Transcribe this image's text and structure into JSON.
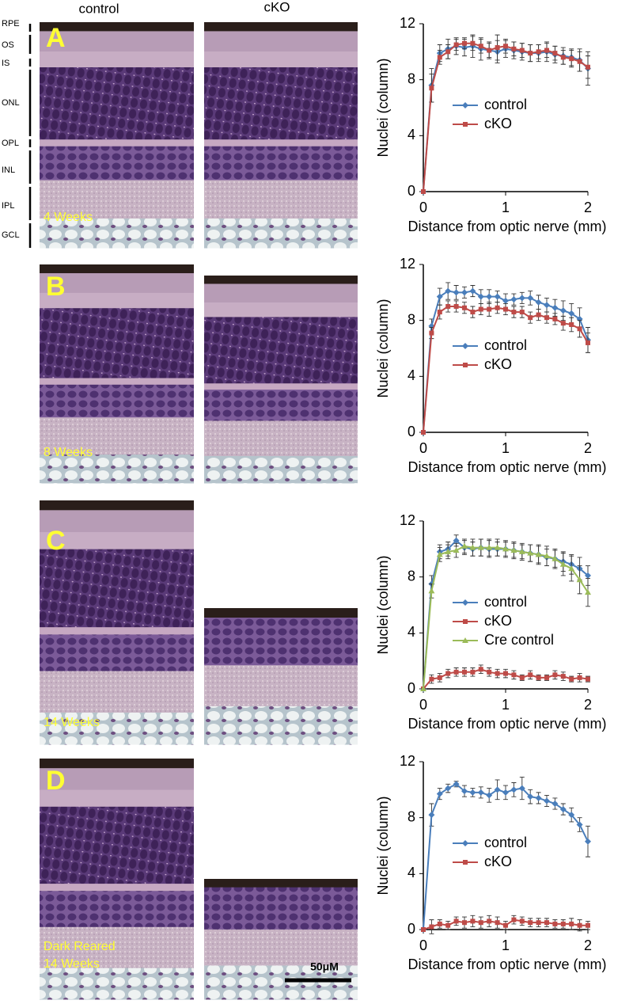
{
  "figure": {
    "column_labels": [
      "control",
      "cKO"
    ],
    "layer_labels": [
      "RPE",
      "OS",
      "IS",
      "ONL",
      "OPL",
      "INL",
      "IPL",
      "GCL"
    ],
    "panel_letters": [
      "A",
      "B",
      "C",
      "D"
    ],
    "ages": [
      "4 Weeks",
      "8 Weeks",
      "14 Weeks",
      "Dark Reared",
      "14 Weeks"
    ],
    "scale_bar": "50μM"
  },
  "chart_data": [
    {
      "type": "line",
      "xlabel": "Distance from optic nerve (mm)",
      "ylabel": "Nuclei (column)",
      "x": [
        0,
        0.1,
        0.2,
        0.3,
        0.4,
        0.5,
        0.6,
        0.7,
        0.8,
        0.9,
        1.0,
        1.1,
        1.2,
        1.3,
        1.4,
        1.5,
        1.6,
        1.7,
        1.8,
        1.9,
        2.0
      ],
      "xlim": [
        0,
        2
      ],
      "xticks": [
        0,
        1,
        2
      ],
      "ylim": [
        0,
        12
      ],
      "yticks": [
        0,
        4,
        8,
        12
      ],
      "series": [
        {
          "name": "control",
          "color": "#4a7ebb",
          "marker": "diamond",
          "values": [
            0,
            7.6,
            9.9,
            10.2,
            10.4,
            10.3,
            10.4,
            10.2,
            10.1,
            10.0,
            10.2,
            10.1,
            10.0,
            9.9,
            9.9,
            10.0,
            9.8,
            9.7,
            9.6,
            9.4,
            8.8
          ],
          "errors": [
            0,
            1.2,
            0.6,
            0.7,
            0.6,
            0.6,
            0.8,
            0.8,
            0.6,
            0.8,
            0.6,
            0.6,
            0.6,
            0.6,
            0.6,
            0.7,
            0.6,
            0.6,
            0.6,
            0.8,
            1.2
          ]
        },
        {
          "name": "cKO",
          "color": "#be4b48",
          "marker": "square",
          "values": [
            0,
            7.4,
            9.6,
            10.0,
            10.5,
            10.6,
            10.6,
            10.4,
            10.1,
            10.3,
            10.4,
            10.2,
            10.1,
            9.9,
            10.0,
            10.1,
            9.9,
            9.6,
            9.5,
            9.3,
            8.9
          ],
          "errors": [
            0,
            1.0,
            0.5,
            0.5,
            0.4,
            0.4,
            0.5,
            0.5,
            0.5,
            0.9,
            0.5,
            0.5,
            0.5,
            0.6,
            0.5,
            0.5,
            0.5,
            0.5,
            0.6,
            0.7,
            0.8
          ]
        }
      ]
    },
    {
      "type": "line",
      "xlabel": "Distance from optic nerve (mm)",
      "ylabel": "Nuclei (column)",
      "x": [
        0,
        0.1,
        0.2,
        0.3,
        0.4,
        0.5,
        0.6,
        0.7,
        0.8,
        0.9,
        1.0,
        1.1,
        1.2,
        1.3,
        1.4,
        1.5,
        1.6,
        1.7,
        1.8,
        1.9,
        2.0
      ],
      "xlim": [
        0,
        2
      ],
      "xticks": [
        0,
        1,
        2
      ],
      "ylim": [
        0,
        12
      ],
      "yticks": [
        0,
        4,
        8,
        12
      ],
      "series": [
        {
          "name": "control",
          "color": "#4a7ebb",
          "marker": "diamond",
          "values": [
            0,
            7.6,
            9.7,
            10.1,
            10.0,
            10.0,
            10.1,
            9.7,
            9.7,
            9.7,
            9.4,
            9.5,
            9.6,
            9.6,
            9.3,
            9.1,
            8.9,
            8.7,
            8.5,
            8.1,
            6.6
          ],
          "errors": [
            0,
            0.5,
            0.6,
            0.6,
            0.5,
            0.4,
            0.4,
            0.5,
            0.5,
            0.4,
            0.5,
            0.4,
            0.4,
            0.5,
            0.5,
            0.5,
            0.6,
            0.7,
            0.7,
            0.8,
            0.9
          ]
        },
        {
          "name": "cKO",
          "color": "#be4b48",
          "marker": "square",
          "values": [
            0,
            7.1,
            8.6,
            9.0,
            9.0,
            8.9,
            8.6,
            8.8,
            8.8,
            8.9,
            8.8,
            8.6,
            8.6,
            8.2,
            8.4,
            8.2,
            8.1,
            7.8,
            7.7,
            7.4,
            6.4
          ],
          "errors": [
            0,
            0.4,
            0.5,
            0.4,
            0.4,
            0.4,
            0.4,
            0.4,
            0.5,
            0.4,
            0.4,
            0.4,
            0.4,
            0.4,
            0.4,
            0.4,
            0.4,
            0.5,
            0.5,
            0.6,
            0.7
          ]
        }
      ]
    },
    {
      "type": "line",
      "xlabel": "Distance from optic nerve (mm)",
      "ylabel": "Nuclei (column)",
      "x": [
        0,
        0.1,
        0.2,
        0.3,
        0.4,
        0.5,
        0.6,
        0.7,
        0.8,
        0.9,
        1.0,
        1.1,
        1.2,
        1.3,
        1.4,
        1.5,
        1.6,
        1.7,
        1.8,
        1.9,
        2.0
      ],
      "xlim": [
        0,
        2
      ],
      "xticks": [
        0,
        1,
        2
      ],
      "ylim": [
        0,
        12
      ],
      "yticks": [
        0,
        4,
        8,
        12
      ],
      "series": [
        {
          "name": "control",
          "color": "#4a7ebb",
          "marker": "diamond",
          "values": [
            0,
            7.5,
            9.8,
            10.0,
            10.6,
            10.1,
            10.0,
            10.1,
            10.0,
            10.0,
            10.0,
            9.9,
            9.8,
            9.7,
            9.6,
            9.4,
            9.3,
            9.1,
            8.9,
            8.6,
            8.1
          ],
          "errors": [
            0,
            0.6,
            0.5,
            0.5,
            0.4,
            0.5,
            0.5,
            0.6,
            0.6,
            0.5,
            0.5,
            0.5,
            0.5,
            0.6,
            0.6,
            0.6,
            0.6,
            0.7,
            0.7,
            0.8,
            0.7
          ]
        },
        {
          "name": "cKO",
          "color": "#be4b48",
          "marker": "square",
          "values": [
            0,
            0.7,
            0.8,
            1.1,
            1.2,
            1.2,
            1.2,
            1.4,
            1.2,
            1.1,
            1.1,
            1.0,
            0.8,
            1.0,
            0.8,
            0.8,
            1.0,
            0.9,
            0.7,
            0.8,
            0.7
          ],
          "errors": [
            0,
            0.3,
            0.3,
            0.3,
            0.3,
            0.3,
            0.3,
            0.3,
            0.3,
            0.3,
            0.3,
            0.3,
            0.2,
            0.3,
            0.2,
            0.2,
            0.3,
            0.3,
            0.2,
            0.3,
            0.2
          ]
        },
        {
          "name": "Cre control",
          "color": "#9bbb59",
          "marker": "triangle",
          "values": [
            0,
            7.0,
            9.6,
            9.8,
            9.9,
            10.2,
            10.1,
            10.1,
            10.1,
            10.1,
            10.0,
            9.9,
            9.8,
            9.7,
            9.6,
            9.5,
            9.3,
            8.9,
            8.6,
            7.8,
            6.9
          ],
          "errors": [
            0,
            0.5,
            0.5,
            0.5,
            0.5,
            0.5,
            0.6,
            0.6,
            0.6,
            0.6,
            0.6,
            0.6,
            0.6,
            0.6,
            0.7,
            0.7,
            0.7,
            0.8,
            0.9,
            1.0,
            1.0
          ]
        }
      ]
    },
    {
      "type": "line",
      "xlabel": "Distance from optic nerve (mm)",
      "ylabel": "Nuclei (column)",
      "x": [
        0,
        0.1,
        0.2,
        0.3,
        0.4,
        0.5,
        0.6,
        0.7,
        0.8,
        0.9,
        1.0,
        1.1,
        1.2,
        1.3,
        1.4,
        1.5,
        1.6,
        1.7,
        1.8,
        1.9,
        2.0
      ],
      "xlim": [
        0,
        2
      ],
      "xticks": [
        0,
        1,
        2
      ],
      "ylim": [
        0,
        12
      ],
      "yticks": [
        0,
        4,
        8,
        12
      ],
      "series": [
        {
          "name": "control",
          "color": "#4a7ebb",
          "marker": "diamond",
          "values": [
            0,
            8.2,
            9.7,
            10.1,
            10.4,
            9.9,
            9.8,
            9.8,
            9.6,
            10.0,
            9.8,
            10.0,
            10.1,
            9.5,
            9.4,
            9.2,
            9.0,
            8.6,
            8.2,
            7.5,
            6.3
          ],
          "errors": [
            0,
            0.8,
            0.4,
            0.3,
            0.2,
            0.4,
            0.3,
            0.4,
            0.5,
            0.7,
            0.5,
            0.5,
            0.8,
            0.5,
            0.4,
            0.4,
            0.4,
            0.4,
            0.5,
            0.5,
            1.1
          ]
        },
        {
          "name": "cKO",
          "color": "#be4b48",
          "marker": "square",
          "values": [
            0,
            0.2,
            0.4,
            0.3,
            0.6,
            0.5,
            0.6,
            0.5,
            0.6,
            0.5,
            0.3,
            0.7,
            0.6,
            0.5,
            0.5,
            0.5,
            0.4,
            0.4,
            0.4,
            0.3,
            0.3
          ],
          "errors": [
            0,
            0.5,
            0.3,
            0.3,
            0.3,
            0.4,
            0.4,
            0.4,
            0.4,
            0.4,
            0.3,
            0.3,
            0.3,
            0.3,
            0.3,
            0.3,
            0.3,
            0.3,
            0.4,
            0.4,
            0.3
          ]
        }
      ]
    }
  ]
}
